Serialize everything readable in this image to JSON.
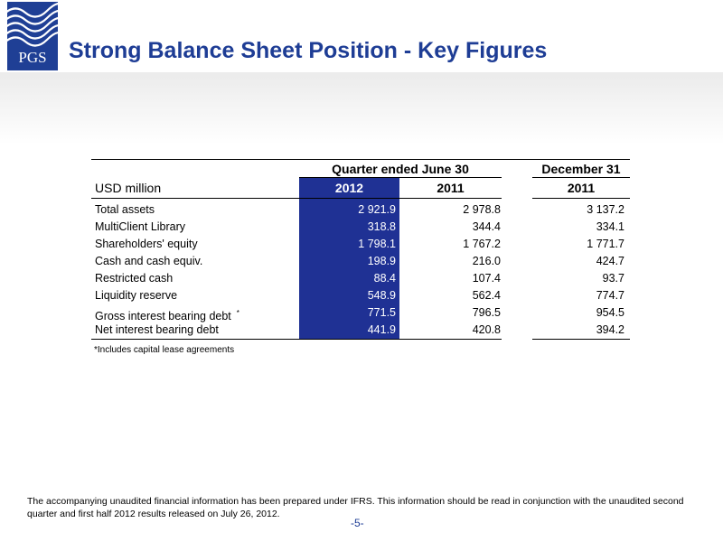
{
  "logo": {
    "text": "PGS"
  },
  "title": "Strong Balance Sheet Position - Key Figures",
  "table": {
    "unit_label": "USD million",
    "group_quarter": "Quarter ended June 30",
    "group_december": "December 31",
    "years": [
      "2012",
      "2011",
      "2011"
    ],
    "rows": [
      {
        "label": "Total assets",
        "v": [
          "2 921.9",
          "2 978.8",
          "3 137.2"
        ]
      },
      {
        "label": "MultiClient Library",
        "v": [
          "318.8",
          "344.4",
          "334.1"
        ]
      },
      {
        "label": "Shareholders' equity",
        "v": [
          "1 798.1",
          "1 767.2",
          "1 771.7"
        ]
      },
      {
        "label": "Cash and cash equiv.",
        "v": [
          "198.9",
          "216.0",
          "424.7"
        ]
      },
      {
        "label": "Restricted cash",
        "v": [
          "88.4",
          "107.4",
          "93.7"
        ]
      },
      {
        "label": "Liquidity reserve",
        "v": [
          "548.9",
          "562.4",
          "774.7"
        ]
      },
      {
        "label": "Gross interest bearing debt",
        "mark": "*",
        "v": [
          "771.5",
          "796.5",
          "954.5"
        ]
      },
      {
        "label": "Net interest bearing debt",
        "v": [
          "441.9",
          "420.8",
          "394.2"
        ]
      }
    ],
    "footnote": "*Includes capital lease agreements"
  },
  "disclaimer": "The accompanying unaudited financial information has been prepared under IFRS. This information should be read in conjunction with the unaudited second quarter and first half 2012 results released on July 26, 2012.",
  "page_number": "-5-",
  "colors": {
    "brand_blue": "#1e3d95",
    "highlight_column": "#1f3194"
  }
}
